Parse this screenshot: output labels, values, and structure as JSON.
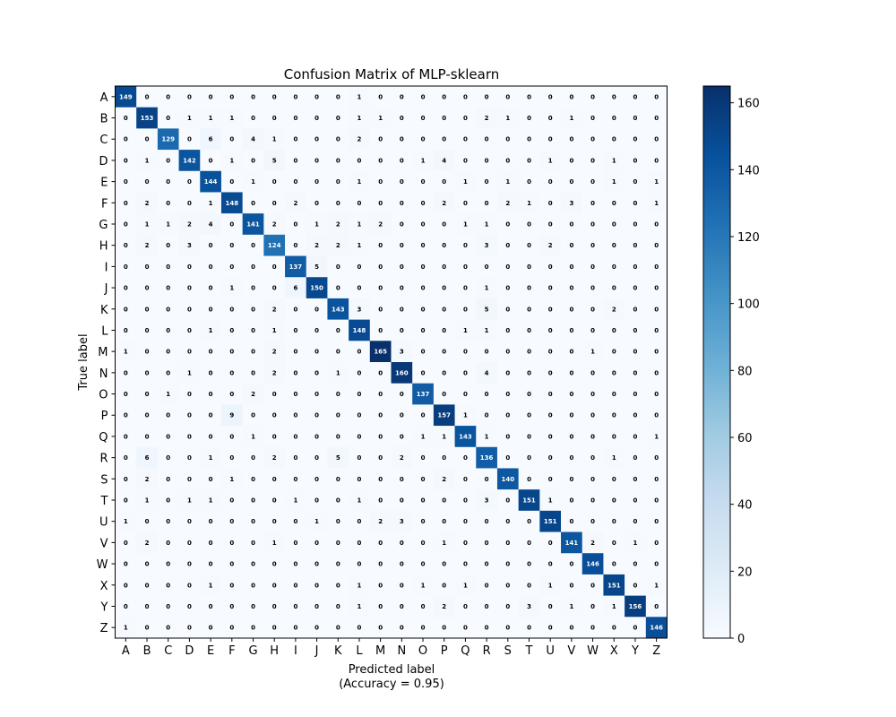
{
  "chart_data": {
    "type": "heatmap",
    "title": "Confusion Matrix of MLP-sklearn",
    "xlabel": "Predicted label",
    "xlabel_sub": "(Accuracy = 0.95)",
    "ylabel": "True label",
    "labels": [
      "A",
      "B",
      "C",
      "D",
      "E",
      "F",
      "G",
      "H",
      "I",
      "J",
      "K",
      "L",
      "M",
      "N",
      "O",
      "P",
      "Q",
      "R",
      "S",
      "T",
      "U",
      "V",
      "W",
      "X",
      "Y",
      "Z"
    ],
    "colormap": "Blues",
    "colorbar": {
      "min": 0,
      "max": 165,
      "ticks": [
        0,
        20,
        40,
        60,
        80,
        100,
        120,
        140,
        160
      ]
    },
    "matrix": [
      [
        149,
        0,
        0,
        0,
        0,
        0,
        0,
        0,
        0,
        0,
        0,
        1,
        0,
        0,
        0,
        0,
        0,
        0,
        0,
        0,
        0,
        0,
        0,
        0,
        0,
        0
      ],
      [
        0,
        153,
        0,
        1,
        1,
        1,
        0,
        0,
        0,
        0,
        0,
        1,
        1,
        0,
        0,
        0,
        0,
        2,
        1,
        0,
        0,
        1,
        0,
        0,
        0,
        0
      ],
      [
        0,
        0,
        129,
        0,
        6,
        0,
        4,
        1,
        0,
        0,
        0,
        2,
        0,
        0,
        0,
        0,
        0,
        0,
        0,
        0,
        0,
        0,
        0,
        0,
        0,
        0
      ],
      [
        0,
        1,
        0,
        142,
        0,
        1,
        0,
        5,
        0,
        0,
        0,
        0,
        0,
        0,
        1,
        4,
        0,
        0,
        0,
        0,
        1,
        0,
        0,
        1,
        0,
        0
      ],
      [
        0,
        0,
        0,
        0,
        144,
        0,
        1,
        0,
        0,
        0,
        0,
        1,
        0,
        0,
        0,
        0,
        1,
        0,
        1,
        0,
        0,
        0,
        0,
        1,
        0,
        1
      ],
      [
        0,
        2,
        0,
        0,
        1,
        148,
        0,
        0,
        2,
        0,
        0,
        0,
        0,
        0,
        0,
        2,
        0,
        0,
        2,
        1,
        0,
        3,
        0,
        0,
        0,
        1
      ],
      [
        0,
        1,
        1,
        2,
        4,
        0,
        141,
        2,
        0,
        1,
        2,
        1,
        2,
        0,
        0,
        0,
        1,
        1,
        0,
        0,
        0,
        0,
        0,
        0,
        0,
        0
      ],
      [
        0,
        2,
        0,
        3,
        0,
        0,
        0,
        124,
        0,
        2,
        2,
        1,
        0,
        0,
        0,
        0,
        0,
        3,
        0,
        0,
        2,
        0,
        0,
        0,
        0,
        0
      ],
      [
        0,
        0,
        0,
        0,
        0,
        0,
        0,
        0,
        137,
        5,
        0,
        0,
        0,
        0,
        0,
        0,
        0,
        0,
        0,
        0,
        0,
        0,
        0,
        0,
        0,
        0
      ],
      [
        0,
        0,
        0,
        0,
        0,
        1,
        0,
        0,
        6,
        150,
        0,
        0,
        0,
        0,
        0,
        0,
        0,
        1,
        0,
        0,
        0,
        0,
        0,
        0,
        0,
        0
      ],
      [
        0,
        0,
        0,
        0,
        0,
        0,
        0,
        2,
        0,
        0,
        143,
        3,
        0,
        0,
        0,
        0,
        0,
        5,
        0,
        0,
        0,
        0,
        0,
        2,
        0,
        0
      ],
      [
        0,
        0,
        0,
        0,
        1,
        0,
        0,
        1,
        0,
        0,
        0,
        148,
        0,
        0,
        0,
        0,
        1,
        1,
        0,
        0,
        0,
        0,
        0,
        0,
        0,
        0
      ],
      [
        1,
        0,
        0,
        0,
        0,
        0,
        0,
        2,
        0,
        0,
        0,
        0,
        165,
        3,
        0,
        0,
        0,
        0,
        0,
        0,
        0,
        0,
        1,
        0,
        0,
        0
      ],
      [
        0,
        0,
        0,
        1,
        0,
        0,
        0,
        2,
        0,
        0,
        1,
        0,
        0,
        160,
        0,
        0,
        0,
        4,
        0,
        0,
        0,
        0,
        0,
        0,
        0,
        0
      ],
      [
        0,
        0,
        1,
        0,
        0,
        0,
        2,
        0,
        0,
        0,
        0,
        0,
        0,
        0,
        137,
        0,
        0,
        0,
        0,
        0,
        0,
        0,
        0,
        0,
        0,
        0
      ],
      [
        0,
        0,
        0,
        0,
        0,
        9,
        0,
        0,
        0,
        0,
        0,
        0,
        0,
        0,
        0,
        157,
        1,
        0,
        0,
        0,
        0,
        0,
        0,
        0,
        0,
        0
      ],
      [
        0,
        0,
        0,
        0,
        0,
        0,
        1,
        0,
        0,
        0,
        0,
        0,
        0,
        0,
        1,
        1,
        143,
        1,
        0,
        0,
        0,
        0,
        0,
        0,
        0,
        1
      ],
      [
        0,
        6,
        0,
        0,
        1,
        0,
        0,
        2,
        0,
        0,
        5,
        0,
        0,
        2,
        0,
        0,
        0,
        136,
        0,
        0,
        0,
        0,
        0,
        1,
        0,
        0
      ],
      [
        0,
        2,
        0,
        0,
        0,
        1,
        0,
        0,
        0,
        0,
        0,
        0,
        0,
        0,
        0,
        2,
        0,
        0,
        140,
        0,
        0,
        0,
        0,
        0,
        0,
        0
      ],
      [
        0,
        1,
        0,
        1,
        1,
        0,
        0,
        0,
        1,
        0,
        0,
        1,
        0,
        0,
        0,
        0,
        0,
        3,
        0,
        151,
        1,
        0,
        0,
        0,
        0,
        0
      ],
      [
        1,
        0,
        0,
        0,
        0,
        0,
        0,
        0,
        0,
        1,
        0,
        0,
        2,
        3,
        0,
        0,
        0,
        0,
        0,
        0,
        151,
        0,
        0,
        0,
        0,
        0
      ],
      [
        0,
        2,
        0,
        0,
        0,
        0,
        0,
        1,
        0,
        0,
        0,
        0,
        0,
        0,
        0,
        1,
        0,
        0,
        0,
        0,
        0,
        141,
        2,
        0,
        1,
        0
      ],
      [
        0,
        0,
        0,
        0,
        0,
        0,
        0,
        0,
        0,
        0,
        0,
        0,
        0,
        0,
        0,
        0,
        0,
        0,
        0,
        0,
        0,
        0,
        146,
        0,
        0,
        0
      ],
      [
        0,
        0,
        0,
        0,
        1,
        0,
        0,
        0,
        0,
        0,
        0,
        1,
        0,
        0,
        1,
        0,
        1,
        0,
        0,
        0,
        1,
        0,
        0,
        151,
        0,
        1
      ],
      [
        0,
        0,
        0,
        0,
        0,
        0,
        0,
        0,
        0,
        0,
        0,
        1,
        0,
        0,
        0,
        2,
        0,
        0,
        0,
        3,
        0,
        1,
        0,
        1,
        156,
        0
      ],
      [
        1,
        0,
        0,
        0,
        0,
        0,
        0,
        0,
        0,
        0,
        0,
        0,
        0,
        0,
        0,
        0,
        0,
        0,
        0,
        0,
        0,
        0,
        0,
        0,
        0,
        146
      ]
    ]
  }
}
